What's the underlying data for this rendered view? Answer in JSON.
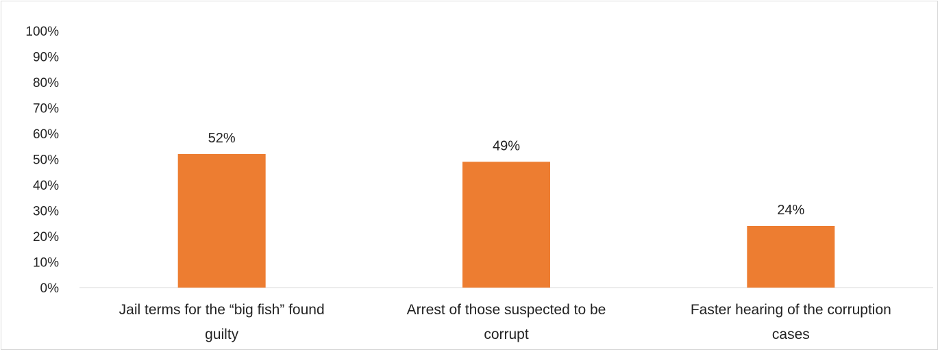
{
  "chart_data": {
    "type": "bar",
    "title": "",
    "xlabel": "",
    "ylabel": "",
    "categories": [
      "Jail terms for the “big fish” found guilty",
      "Arrest of those suspected to be corrupt",
      "Faster hearing of the corruption cases"
    ],
    "category_lines": [
      [
        "Jail terms for the “big fish” found",
        "guilty"
      ],
      [
        "Arrest of those suspected to be",
        "corrupt"
      ],
      [
        "Faster hearing of the corruption",
        "cases"
      ]
    ],
    "values": [
      52,
      49,
      24
    ],
    "data_labels": [
      "52%",
      "49%",
      "24%"
    ],
    "ylim": [
      0,
      100
    ],
    "yticks": [
      0,
      10,
      20,
      30,
      40,
      50,
      60,
      70,
      80,
      90,
      100
    ],
    "ytick_labels": [
      "0%",
      "10%",
      "20%",
      "30%",
      "40%",
      "50%",
      "60%",
      "70%",
      "80%",
      "90%",
      "100%"
    ],
    "grid": false,
    "legend": "none",
    "bar_color": "#ED7D31",
    "axis_color": "#d9d9d9"
  }
}
